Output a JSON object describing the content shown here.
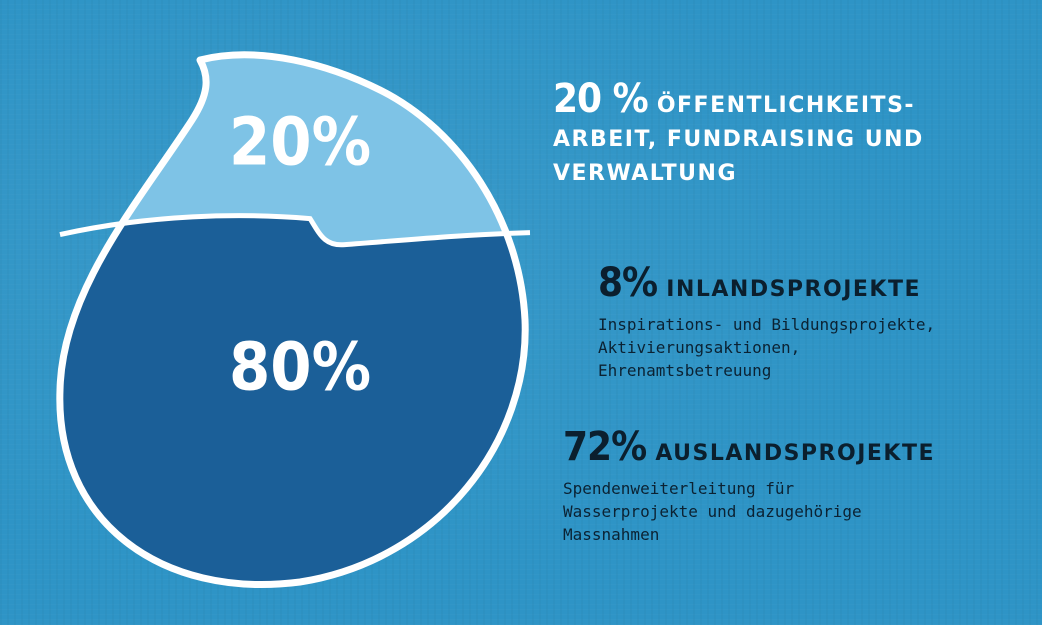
{
  "chart_data": {
    "type": "pie",
    "values": [
      20,
      80
    ],
    "labels": [
      "20%",
      "80%"
    ],
    "colors": [
      "#7ec3e6",
      "#1b5f98"
    ]
  },
  "legend": [
    {
      "pct": "20 %",
      "title_line1": "ÖFFENTLICHKEITS-",
      "title_line2": "ARBEIT, FUNDRAISING UND",
      "title_line3": "VERWALTUNG",
      "desc": ""
    },
    {
      "pct": "8%",
      "title_line1": "INLANDSPROJEKTE",
      "desc": "Inspirations- und Bildungsprojekte,\nAktivierungsaktionen,\nEhrenamtsbetreuung"
    },
    {
      "pct": "72%",
      "title_line1": "AUSLANDSPROJEKTE",
      "desc": "Spendenweiterleitung für\nWasserprojekte und dazugehörige\nMassnahmen"
    }
  ]
}
